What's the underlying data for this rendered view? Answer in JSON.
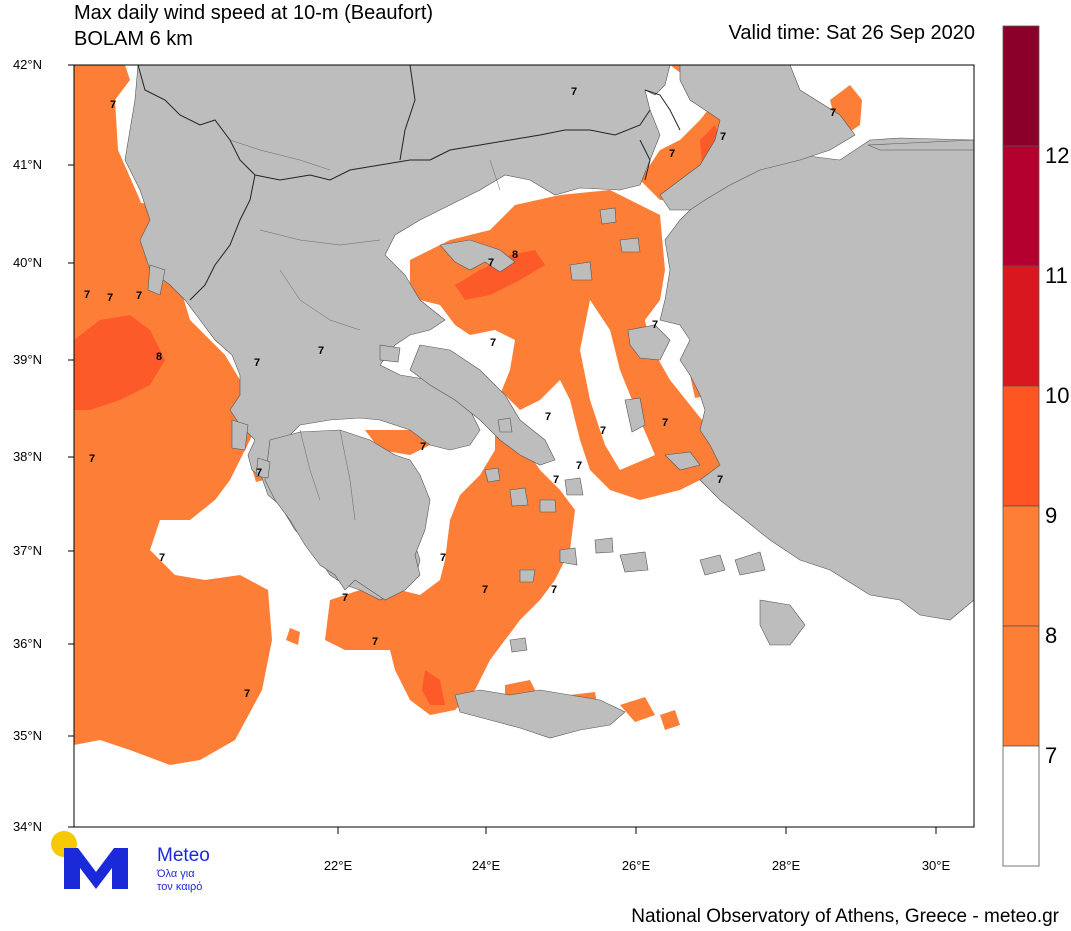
{
  "header": {
    "title_line1": "Max daily wind speed at 10-m (Beaufort)",
    "title_line2": "BOLAM 6 km",
    "valid_time": "Valid time: Sat 26 Sep 2020"
  },
  "footer": {
    "credit": "National Observatory of Athens, Greece - meteo.gr"
  },
  "logo": {
    "name": "Meteo",
    "tagline_1": "Όλα για",
    "tagline_2": "τον καιρό",
    "dot_color": "#f7c900",
    "m_color": "#1a2ad8"
  },
  "axes": {
    "lat_labels": [
      "42°N",
      "41°N",
      "40°N",
      "39°N",
      "38°N",
      "37°N",
      "36°N",
      "35°N",
      "34°N"
    ],
    "lon_labels": [
      "22°E",
      "24°E",
      "26°E",
      "28°E",
      "30°E"
    ]
  },
  "colorbar": {
    "labels": [
      "12",
      "11",
      "10",
      "9",
      "8",
      "7"
    ],
    "colors": [
      "#8b0029",
      "#b3002f",
      "#d9171f",
      "#fe5523",
      "#fe7e36",
      "#ffffff"
    ]
  },
  "colors": {
    "land": "#bdbdbd",
    "sea": "#ffffff",
    "beaufort_7": "#fd7e36",
    "beaufort_8": "#fd5a2a"
  },
  "contour_labels": [
    "7",
    "7",
    "7",
    "7",
    "8",
    "7",
    "7",
    "8",
    "7",
    "7",
    "7",
    "7",
    "7",
    "7",
    "7",
    "7",
    "7",
    "7",
    "7",
    "7",
    "7",
    "7",
    "7",
    "7",
    "7",
    "7",
    "7",
    "7",
    "7",
    "7",
    "7"
  ]
}
